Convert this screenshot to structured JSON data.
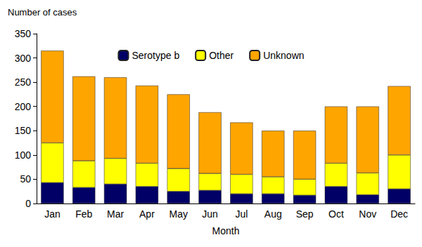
{
  "chart_data": {
    "type": "bar",
    "stacked": true,
    "y_label": "Number of cases",
    "x_label": "Month",
    "categories": [
      "Jan",
      "Feb",
      "Mar",
      "Apr",
      "May",
      "Jun",
      "Jul",
      "Aug",
      "Sep",
      "Oct",
      "Nov",
      "Dec"
    ],
    "series": [
      {
        "name": "Serotype b",
        "color": "#000066",
        "values": [
          43,
          33,
          40,
          35,
          25,
          27,
          20,
          20,
          17,
          35,
          18,
          30
        ]
      },
      {
        "name": "Other",
        "color": "#ffff00",
        "values": [
          82,
          55,
          53,
          48,
          47,
          35,
          40,
          35,
          33,
          48,
          45,
          70
        ]
      },
      {
        "name": "Unknown",
        "color": "#ffa500",
        "values": [
          190,
          174,
          167,
          160,
          153,
          126,
          107,
          95,
          100,
          117,
          137,
          142
        ]
      }
    ],
    "ylim": [
      0,
      350
    ],
    "yticks": [
      0,
      50,
      100,
      150,
      200,
      250,
      300,
      350
    ],
    "grid": false,
    "legend": "top"
  }
}
